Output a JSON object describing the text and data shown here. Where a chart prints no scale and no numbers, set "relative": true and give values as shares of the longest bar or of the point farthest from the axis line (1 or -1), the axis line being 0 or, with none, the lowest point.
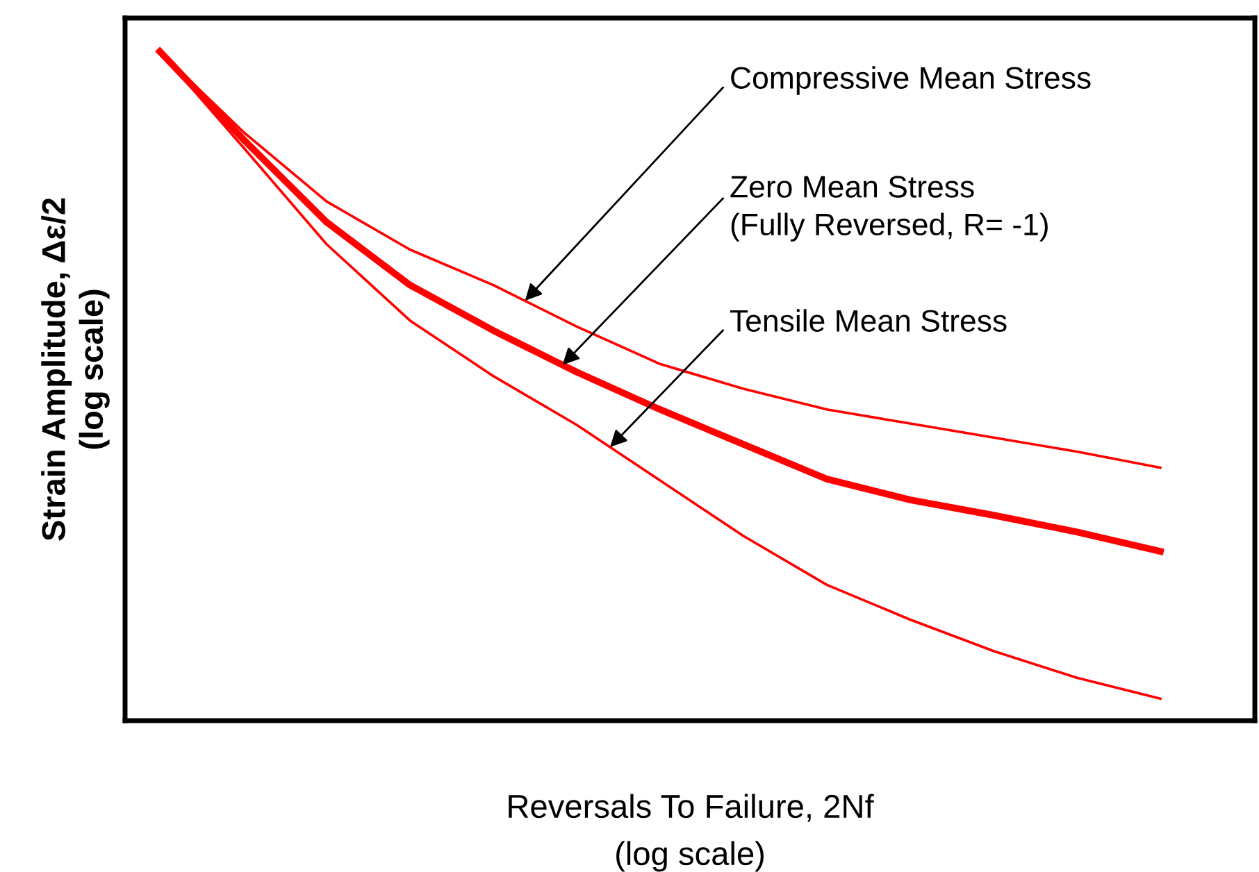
{
  "chart_data": {
    "type": "line",
    "relative": true,
    "xlabel": "Reversals To Failure, 2Nf\n(log scale)",
    "ylabel": "Strain Amplitude, Δε/2\n(log scale)",
    "categories": [
      null,
      null,
      null,
      null,
      null,
      null,
      null,
      null,
      null,
      null,
      null,
      null,
      null
    ],
    "series": [
      {
        "color": "#ff0000",
        "values": [
          1,
          0.88,
          0.776,
          0.704,
          0.651,
          0.589,
          0.533,
          0.496,
          0.465,
          0.444,
          0.423,
          0.402,
          0.378
        ]
      },
      {
        "color": "#ff0000",
        "values": [
          1,
          0.869,
          0.745,
          0.651,
          0.583,
          0.521,
          0.465,
          0.413,
          0.361,
          0.33,
          0.307,
          0.282,
          0.253
        ]
      },
      {
        "color": "#ff0000",
        "values": [
          1,
          0.857,
          0.712,
          0.598,
          0.515,
          0.442,
          0.359,
          0.276,
          0.203,
          0.151,
          0.104,
          0.064,
          0.033
        ]
      }
    ],
    "annotations": [
      "Compressive Mean Stress",
      "Zero Mean Stress\n(Fully Reversed, R= -1)",
      "Tensile Mean Stress"
    ],
    "tick_labels": false,
    "grid": false,
    "legend": false,
    "marker": "none",
    "line_style": "solid"
  }
}
